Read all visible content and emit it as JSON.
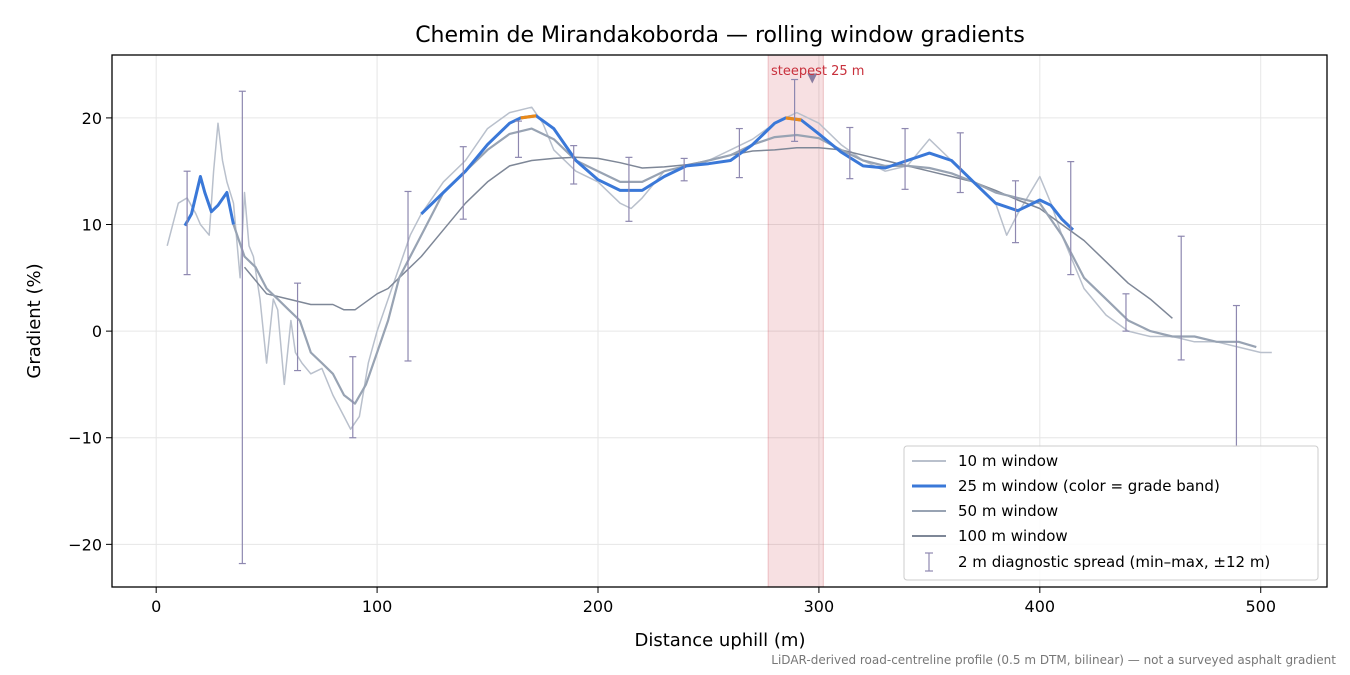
{
  "chart_data": {
    "type": "line",
    "title": "Chemin de Mirandakoborda — rolling window gradients",
    "xlabel": "Distance uphill (m)",
    "ylabel": "Gradient (%)",
    "xlim": [
      -20,
      530
    ],
    "ylim": [
      -24,
      25.9
    ],
    "xticks": [
      0,
      100,
      200,
      300,
      400,
      500
    ],
    "yticks": [
      -20,
      -10,
      0,
      10,
      20
    ],
    "xtick_labels": [
      "0",
      "100",
      "200",
      "300",
      "400",
      "500"
    ],
    "ytick_labels": [
      "−20",
      "−10",
      "0",
      "10",
      "20"
    ],
    "grid": true,
    "legend_position": "lower-right",
    "footnote": "LiDAR-derived road-centreline profile (0.5 m DTM, bilinear) — not a surveyed asphalt gradient",
    "highlight": {
      "label": "steepest 25 m",
      "x_start": 277,
      "x_end": 302,
      "marker_x": 297,
      "marker_y": 23.7,
      "color": "#c8303c"
    },
    "series": [
      {
        "name": "10 m window",
        "color": "#b9c0cc",
        "x": [
          5,
          10,
          14,
          18,
          20,
          24,
          26,
          28,
          30,
          32,
          35,
          38,
          40,
          42,
          44,
          47,
          50,
          53,
          55,
          58,
          61,
          63,
          66,
          70,
          75,
          80,
          85,
          88,
          92,
          96,
          100,
          105,
          110,
          115,
          120,
          130,
          140,
          150,
          160,
          170,
          175,
          180,
          190,
          200,
          210,
          215,
          220,
          230,
          240,
          250,
          260,
          270,
          280,
          290,
          300,
          310,
          320,
          330,
          340,
          350,
          360,
          370,
          380,
          385,
          390,
          400,
          405,
          410,
          420,
          430,
          440,
          450,
          460,
          470,
          480,
          490,
          500,
          505
        ],
        "y": [
          8,
          12,
          12.5,
          11,
          10,
          9,
          15,
          19.5,
          16,
          14,
          12,
          5,
          13,
          8,
          7,
          3,
          -3,
          3,
          2,
          -5,
          1,
          -2,
          -3,
          -4,
          -3.5,
          -6,
          -8,
          -9.2,
          -8,
          -3,
          0,
          3,
          6,
          9,
          11,
          14,
          16,
          19,
          20.5,
          21,
          19.5,
          17,
          15,
          14,
          12,
          11.5,
          12.5,
          15,
          15.5,
          16,
          17,
          18,
          19.5,
          20.5,
          19.5,
          17.5,
          16,
          15,
          15.5,
          18,
          16,
          14,
          12,
          9,
          11,
          14.5,
          12,
          9,
          4,
          1.5,
          0,
          -0.5,
          -0.5,
          -1,
          -1,
          -1.5,
          -2,
          -2
        ]
      },
      {
        "name": "25 m window (color = grade band)",
        "color": "#3a78d8",
        "x": [
          13,
          16,
          20,
          22,
          25,
          28,
          32,
          35
        ],
        "y": [
          9.9,
          11,
          14.5,
          13,
          11.2,
          11.8,
          13,
          10
        ],
        "x2": [
          120,
          130,
          140,
          150,
          160,
          165,
          172,
          180,
          190,
          200,
          210,
          220,
          230,
          240,
          250,
          260,
          270,
          280,
          285,
          292,
          300,
          310,
          320,
          330,
          340,
          350,
          360,
          370,
          380,
          390,
          400,
          405,
          410,
          415
        ],
        "y2": [
          11,
          13,
          15,
          17.5,
          19.5,
          20,
          20.2,
          19,
          16,
          14.2,
          13.2,
          13.2,
          14.5,
          15.5,
          15.7,
          16,
          17.5,
          19.5,
          20,
          19.8,
          18.5,
          16.8,
          15.5,
          15.3,
          16,
          16.7,
          16,
          14,
          12,
          11.3,
          12.3,
          11.8,
          10.5,
          9.5
        ],
        "highlight_color": "#e8891a",
        "highlight_ranges": [
          [
            162,
            176
          ],
          [
            284,
            296
          ]
        ]
      },
      {
        "name": "50 m window",
        "color": "#98a3b3",
        "x": [
          35,
          40,
          45,
          50,
          55,
          60,
          65,
          70,
          75,
          80,
          85,
          90,
          95,
          100,
          105,
          110,
          120,
          130,
          140,
          150,
          160,
          170,
          180,
          190,
          200,
          210,
          220,
          230,
          240,
          250,
          260,
          270,
          280,
          290,
          300,
          310,
          320,
          330,
          340,
          350,
          360,
          370,
          380,
          390,
          400,
          410,
          420,
          430,
          440,
          450,
          460,
          470,
          480,
          490,
          498
        ],
        "y": [
          10,
          7,
          6,
          4,
          3,
          2,
          1,
          -2,
          -3,
          -4,
          -6,
          -6.8,
          -5,
          -2,
          1,
          5,
          9,
          13,
          15,
          17,
          18.5,
          19,
          18,
          16,
          15,
          14,
          14,
          15,
          15.5,
          16,
          16.5,
          17.5,
          18.2,
          18.4,
          18.1,
          17,
          16,
          15.5,
          15.5,
          15.3,
          14.8,
          14,
          13,
          12.5,
          12,
          9,
          5,
          3,
          1,
          0,
          -0.5,
          -0.5,
          -1,
          -1,
          -1.5
        ]
      },
      {
        "name": "100 m window",
        "color": "#7e8797",
        "x": [
          40,
          50,
          60,
          70,
          80,
          85,
          90,
          100,
          105,
          110,
          120,
          130,
          140,
          150,
          160,
          170,
          180,
          190,
          200,
          210,
          220,
          230,
          240,
          250,
          260,
          270,
          280,
          290,
          300,
          310,
          320,
          330,
          340,
          350,
          360,
          370,
          380,
          390,
          400,
          410,
          420,
          430,
          440,
          450,
          460
        ],
        "y": [
          6,
          3.5,
          3,
          2.5,
          2.5,
          2,
          2,
          3.5,
          4,
          5,
          7,
          9.5,
          12,
          14,
          15.5,
          16,
          16.2,
          16.3,
          16.2,
          15.8,
          15.3,
          15.4,
          15.6,
          16,
          16.5,
          16.9,
          17,
          17.2,
          17.2,
          17,
          16.5,
          16,
          15.5,
          15,
          14.5,
          14,
          13.2,
          12.3,
          11.5,
          10,
          8.5,
          6.5,
          4.5,
          3,
          1.2
        ]
      }
    ],
    "error_bars": {
      "name": "2 m diagnostic spread (min–max, ±12 m)",
      "color": "#8e88b0",
      "x": [
        14,
        39,
        64,
        89,
        114,
        139,
        164,
        189,
        214,
        239,
        264,
        289,
        314,
        339,
        364,
        389,
        414,
        439,
        464,
        489
      ],
      "ymin": [
        5.3,
        -21.8,
        -3.7,
        -10,
        -2.8,
        10.5,
        16.3,
        13.8,
        10.3,
        14.1,
        14.4,
        17.8,
        14.3,
        13.3,
        13,
        8.3,
        5.3,
        0,
        -2.7,
        -10.8
      ],
      "ymax": [
        15,
        22.5,
        4.5,
        -2.4,
        13.1,
        17.3,
        19.7,
        17.4,
        16.3,
        16.2,
        19,
        23.6,
        19.1,
        19,
        18.6,
        14.1,
        15.9,
        3.5,
        8.9,
        2.4
      ]
    }
  }
}
